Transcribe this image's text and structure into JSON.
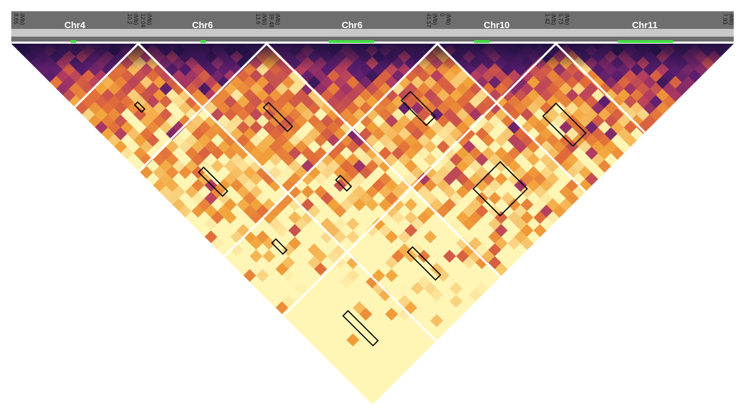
{
  "figure": {
    "chromosomes": [
      {
        "name": "Chr4",
        "start": "8.65",
        "start_unit": "(Mb)",
        "end": "10.2",
        "end_unit": "(Mb)"
      },
      {
        "name": "Chr6",
        "start": "12.04",
        "start_unit": "(Mb)",
        "end": "13.6",
        "end_unit": "(Mb)"
      },
      {
        "name": "Chr6",
        "start": "39.48",
        "start_unit": "(Mb)",
        "end": "41.57",
        "end_unit": "(Mb)"
      },
      {
        "name": "Chr10",
        "start": "0",
        "start_unit": "(Mb)",
        "end": "1.42",
        "end_unit": "(Mb)"
      },
      {
        "name": "Chr11",
        "start": "5.73",
        "start_unit": "(Mb)",
        "end": "7.93",
        "end_unit": "(Mb)"
      }
    ],
    "highlighted_blocks": 10,
    "colors": {
      "header_bg": "#6e6e6e",
      "header_bar": "#c8c8c8",
      "marker": "#44dd44",
      "low_ld": "#2a1450",
      "mid_ld": "#b03a62",
      "high_ld": "#f2a33a",
      "top_ld": "#fff6b6",
      "box_outline": "#000000",
      "separator": "#ffffff"
    }
  }
}
